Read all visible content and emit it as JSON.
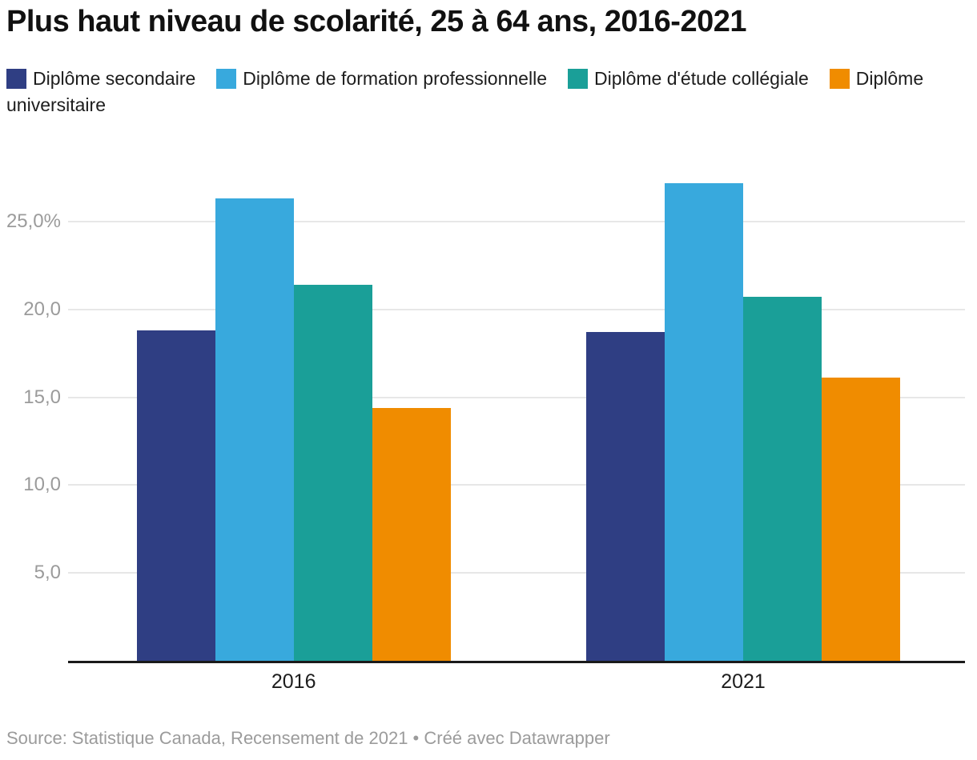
{
  "header": {
    "title": "Plus haut niveau de scolarité, 25 à 64 ans, 2016-2021"
  },
  "footer": {
    "text": "Source: Statistique Canada, Recensement de 2021 • Créé avec Datawrapper"
  },
  "colors": {
    "secondaire": "#2f3e83",
    "formation_professionnelle": "#38a9dd",
    "etude_collegiale": "#1a9f98",
    "universitaire": "#f08c00",
    "gridline": "#e7e7e7",
    "axis_line": "#1a1a1a",
    "tick_text": "#9b9b9b"
  },
  "chart_data": {
    "type": "bar",
    "title": "Plus haut niveau de scolarité, 25 à 64 ans, 2016-2021",
    "categories": [
      "2016",
      "2021"
    ],
    "series": [
      {
        "name": "Diplôme secondaire",
        "key": "secondaire",
        "color": "#2f3e83",
        "values": [
          18.8,
          18.7
        ]
      },
      {
        "name": "Diplôme de formation professionnelle",
        "key": "formation-professionnelle",
        "color": "#38a9dd",
        "values": [
          26.3,
          27.2
        ]
      },
      {
        "name": "Diplôme d'étude collégiale",
        "key": "etude-collegiale",
        "color": "#1a9f98",
        "values": [
          21.4,
          20.7
        ]
      },
      {
        "name": "Diplôme universitaire",
        "key": "universitaire",
        "color": "#f08c00",
        "values": [
          14.4,
          16.1
        ]
      }
    ],
    "xlabel": "",
    "ylabel": "",
    "ylim": [
      0,
      28
    ],
    "yticks": [
      {
        "value": 5,
        "label": "5,0"
      },
      {
        "value": 10,
        "label": "10,0"
      },
      {
        "value": 15,
        "label": "15,0"
      },
      {
        "value": 20,
        "label": "20,0"
      },
      {
        "value": 25,
        "label": "25,0%"
      }
    ],
    "grid": true,
    "legend_position": "top",
    "source_note": "Source: Statistique Canada, Recensement de 2021 • Créé avec Datawrapper"
  }
}
